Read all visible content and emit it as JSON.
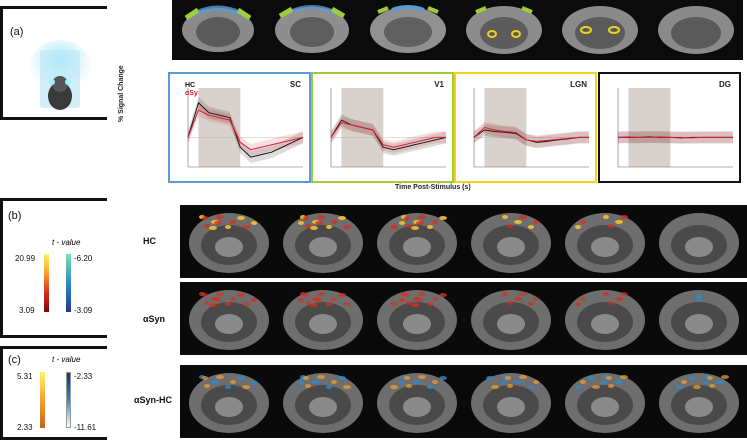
{
  "panels": {
    "a": {
      "label": "(a)"
    },
    "b": {
      "label": "(b)",
      "cbar_title": "t - value",
      "pos_max": "20.99",
      "pos_min": "3.09",
      "neg_max": "-6.20",
      "neg_min": "-3.09"
    },
    "c": {
      "label": "(c)",
      "cbar_title": "t - value",
      "pos_max": "5.31",
      "pos_min": "2.33",
      "neg_max": "-2.33",
      "neg_min": "-11.61"
    }
  },
  "timecourse": {
    "ylabel": "% Signal Change",
    "xlabel": "Time Post-Stimulus (s)",
    "legend": {
      "hc": "HC",
      "asyn": "αSyn"
    },
    "colors": {
      "hc": "#111111",
      "asyn": "#d6202f",
      "sc": "#5b9bd5",
      "v1": "#9fcd3a",
      "lgn": "#f2d21a",
      "dg": "#111111"
    },
    "regions": [
      "SC",
      "V1",
      "LGN",
      "DG"
    ]
  },
  "rows": {
    "hc": "HC",
    "asyn": "αSyn",
    "diff": "αSyn-HC"
  },
  "chart_data": {
    "type": "line",
    "x": [
      -5,
      0,
      5,
      10,
      15,
      20,
      25,
      30,
      35,
      40,
      45,
      50
    ],
    "stimulus_window": [
      0,
      20
    ],
    "xlim": [
      -5,
      50
    ],
    "ylim": [
      -0.6,
      1.0
    ],
    "panels": [
      {
        "title": "SC",
        "series": [
          {
            "name": "HC",
            "values": [
              0.0,
              0.7,
              0.5,
              0.45,
              0.4,
              -0.2,
              -0.4,
              -0.35,
              -0.3,
              -0.2,
              -0.1,
              0.0
            ]
          },
          {
            "name": "αSyn",
            "values": [
              0.0,
              0.55,
              0.45,
              0.4,
              0.35,
              -0.1,
              -0.25,
              -0.2,
              -0.15,
              -0.1,
              -0.05,
              0.0
            ]
          }
        ]
      },
      {
        "title": "V1",
        "series": [
          {
            "name": "HC",
            "values": [
              0.0,
              0.35,
              0.25,
              0.2,
              0.15,
              -0.2,
              -0.25,
              -0.2,
              -0.15,
              -0.1,
              -0.05,
              0.0
            ]
          },
          {
            "name": "αSyn",
            "values": [
              0.0,
              0.3,
              0.25,
              0.2,
              0.15,
              -0.15,
              -0.2,
              -0.15,
              -0.1,
              -0.05,
              0.0,
              0.0
            ]
          }
        ]
      },
      {
        "title": "LGN",
        "series": [
          {
            "name": "HC",
            "values": [
              0.0,
              0.15,
              0.12,
              0.1,
              0.08,
              -0.05,
              -0.1,
              -0.08,
              -0.05,
              -0.03,
              0.0,
              0.0
            ]
          },
          {
            "name": "αSyn",
            "values": [
              0.0,
              0.2,
              0.15,
              0.12,
              0.1,
              -0.05,
              -0.08,
              -0.06,
              -0.04,
              -0.02,
              0.0,
              0.0
            ]
          }
        ]
      },
      {
        "title": "DG",
        "series": [
          {
            "name": "HC",
            "values": [
              0.0,
              0.0,
              0.0,
              0.01,
              0.0,
              0.0,
              -0.01,
              0.0,
              0.0,
              0.0,
              0.0,
              0.0
            ]
          },
          {
            "name": "αSyn",
            "values": [
              0.0,
              0.01,
              0.0,
              0.0,
              0.01,
              0.0,
              0.0,
              -0.01,
              0.0,
              0.0,
              0.0,
              0.0
            ]
          }
        ]
      }
    ]
  }
}
